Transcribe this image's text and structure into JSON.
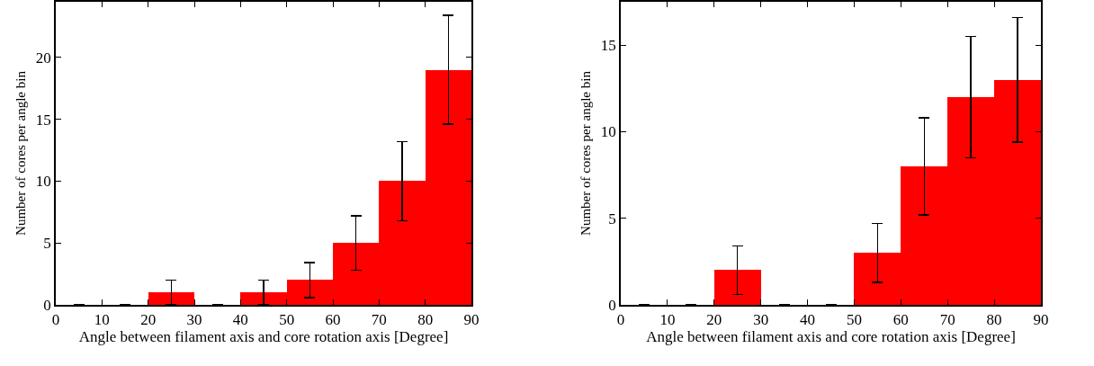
{
  "chart_data": [
    {
      "type": "histogram",
      "xlabel": "Angle between filament axis and core rotation axis [Degree]",
      "ylabel": "Number of cores per angle bin",
      "bins": [
        0,
        10,
        20,
        30,
        40,
        50,
        60,
        70,
        80,
        90
      ],
      "values": [
        0,
        0,
        1,
        0,
        1,
        2,
        5,
        10,
        19
      ],
      "errors": [
        0,
        0,
        1,
        0,
        1,
        1.4,
        2.2,
        3.2,
        4.4
      ],
      "color": "#ff0000",
      "xlim": [
        0,
        90
      ],
      "xticks": [
        0,
        10,
        20,
        30,
        40,
        50,
        60,
        70,
        80,
        90
      ],
      "ylim": [
        0,
        24.5
      ],
      "yticks": [
        0,
        5,
        10,
        15,
        20
      ],
      "grid": false,
      "legend": false
    },
    {
      "type": "histogram",
      "xlabel": "Angle between filament axis and core rotation axis [Degree]",
      "ylabel": "Number of cores per angle bin",
      "bins": [
        0,
        10,
        20,
        30,
        40,
        50,
        60,
        70,
        80,
        90
      ],
      "values": [
        0,
        0,
        2,
        0,
        0,
        3,
        8,
        12,
        13
      ],
      "errors": [
        0,
        0,
        1.4,
        0,
        0,
        1.7,
        2.8,
        3.5,
        3.6
      ],
      "color": "#ff0000",
      "xlim": [
        0,
        90
      ],
      "xticks": [
        0,
        10,
        20,
        30,
        40,
        50,
        60,
        70,
        80,
        90
      ],
      "ylim": [
        0,
        17.5
      ],
      "yticks": [
        0,
        5,
        10,
        15
      ],
      "grid": false,
      "legend": false
    }
  ]
}
